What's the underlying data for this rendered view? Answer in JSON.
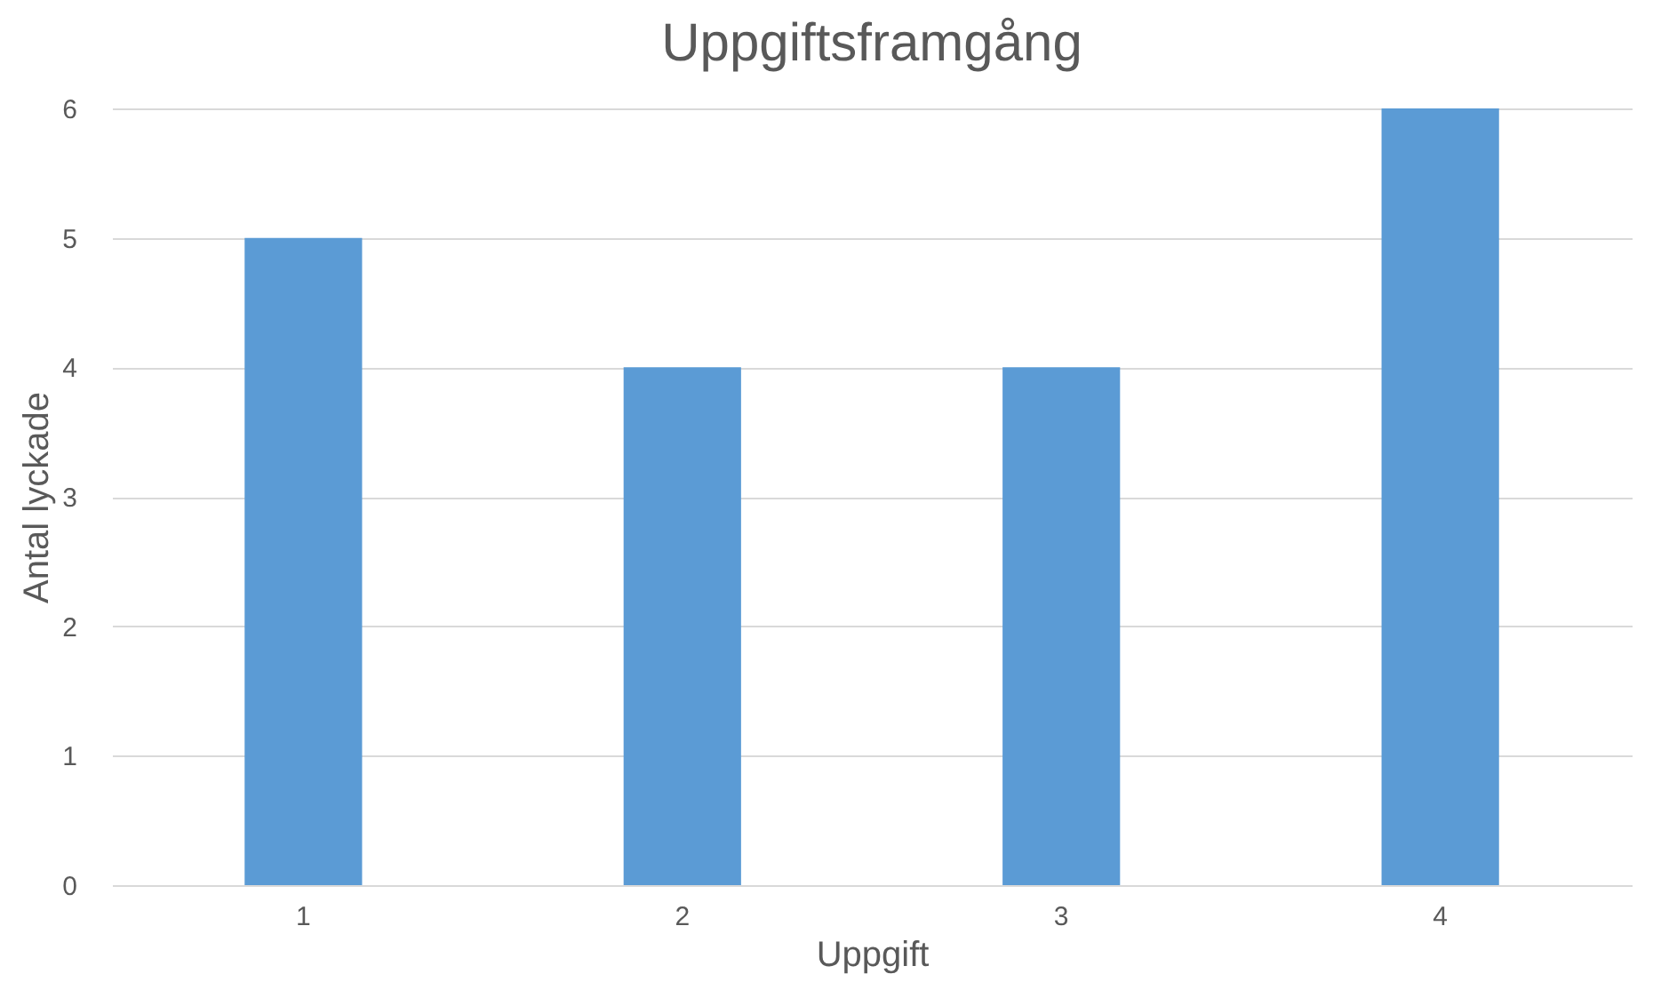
{
  "chart_data": {
    "type": "bar",
    "title": "Uppgiftsframgång",
    "xlabel": "Uppgift",
    "ylabel": "Antal lyckade",
    "categories": [
      "1",
      "2",
      "3",
      "4"
    ],
    "values": [
      5,
      4,
      4,
      6
    ],
    "color": "#5b9bd5",
    "ylim": [
      0,
      6
    ],
    "yticks": [
      0,
      1,
      2,
      3,
      4,
      5,
      6
    ],
    "grid": "y"
  }
}
